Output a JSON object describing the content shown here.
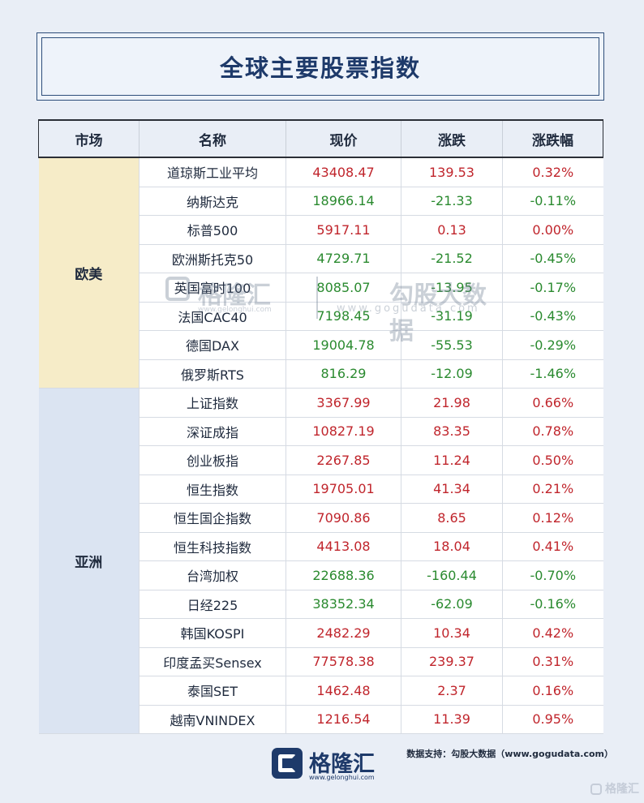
{
  "title": "全球主要股票指数",
  "headers": [
    "市场",
    "名称",
    "现价",
    "涨跌",
    "涨跌幅"
  ],
  "groups": [
    {
      "market": "欧美",
      "rows": [
        {
          "name": "道琼斯工业平均",
          "price": "43408.47",
          "change": "139.53",
          "pct": "0.32%",
          "dir": "up"
        },
        {
          "name": "纳斯达克",
          "price": "18966.14",
          "change": "-21.33",
          "pct": "-0.11%",
          "dir": "down"
        },
        {
          "name": "标普500",
          "price": "5917.11",
          "change": "0.13",
          "pct": "0.00%",
          "dir": "up"
        },
        {
          "name": "欧洲斯托克50",
          "price": "4729.71",
          "change": "-21.52",
          "pct": "-0.45%",
          "dir": "down"
        },
        {
          "name": "英国富时100",
          "price": "8085.07",
          "change": "-13.95",
          "pct": "-0.17%",
          "dir": "down"
        },
        {
          "name": "法国CAC40",
          "price": "7198.45",
          "change": "-31.19",
          "pct": "-0.43%",
          "dir": "down"
        },
        {
          "name": "德国DAX",
          "price": "19004.78",
          "change": "-55.53",
          "pct": "-0.29%",
          "dir": "down"
        },
        {
          "name": "俄罗斯RTS",
          "price": "816.29",
          "change": "-12.09",
          "pct": "-1.46%",
          "dir": "down"
        }
      ]
    },
    {
      "market": "亚洲",
      "rows": [
        {
          "name": "上证指数",
          "price": "3367.99",
          "change": "21.98",
          "pct": "0.66%",
          "dir": "up"
        },
        {
          "name": "深证成指",
          "price": "10827.19",
          "change": "83.35",
          "pct": "0.78%",
          "dir": "up"
        },
        {
          "name": "创业板指",
          "price": "2267.85",
          "change": "11.24",
          "pct": "0.50%",
          "dir": "up"
        },
        {
          "name": "恒生指数",
          "price": "19705.01",
          "change": "41.34",
          "pct": "0.21%",
          "dir": "up"
        },
        {
          "name": "恒生国企指数",
          "price": "7090.86",
          "change": "8.65",
          "pct": "0.12%",
          "dir": "up"
        },
        {
          "name": "恒生科技指数",
          "price": "4413.08",
          "change": "18.04",
          "pct": "0.41%",
          "dir": "up"
        },
        {
          "name": "台湾加权",
          "price": "22688.36",
          "change": "-160.44",
          "pct": "-0.70%",
          "dir": "down"
        },
        {
          "name": "日经225",
          "price": "38352.34",
          "change": "-62.09",
          "pct": "-0.16%",
          "dir": "down"
        },
        {
          "name": "韩国KOSPI",
          "price": "2482.29",
          "change": "10.34",
          "pct": "0.42%",
          "dir": "up"
        },
        {
          "name": "印度孟买Sensex",
          "price": "77578.38",
          "change": "239.37",
          "pct": "0.31%",
          "dir": "up"
        },
        {
          "name": "泰国SET",
          "price": "1462.48",
          "change": "2.37",
          "pct": "0.16%",
          "dir": "up"
        },
        {
          "name": "越南VNINDEX",
          "price": "1216.54",
          "change": "11.39",
          "pct": "0.95%",
          "dir": "up"
        }
      ]
    }
  ],
  "watermark": {
    "brand": "格隆汇",
    "brand_url": "www.gelonghui.com",
    "data_brand": "勾股大数据",
    "data_url": "www.gogudata.com"
  },
  "footer": {
    "brand": "格隆汇",
    "url": "www.gelonghui.com",
    "source": "数据支持：勾股大数据（www.gogudata.com）",
    "corner": "格隆汇"
  },
  "colors": {
    "up": "#c0252c",
    "down": "#2a8a2f",
    "brand": "#1e3a6a",
    "europe_bg": "#f6ecc8",
    "asia_bg": "#dbe4f2"
  },
  "icons": {
    "logo": "gelonghui-logo-icon"
  }
}
